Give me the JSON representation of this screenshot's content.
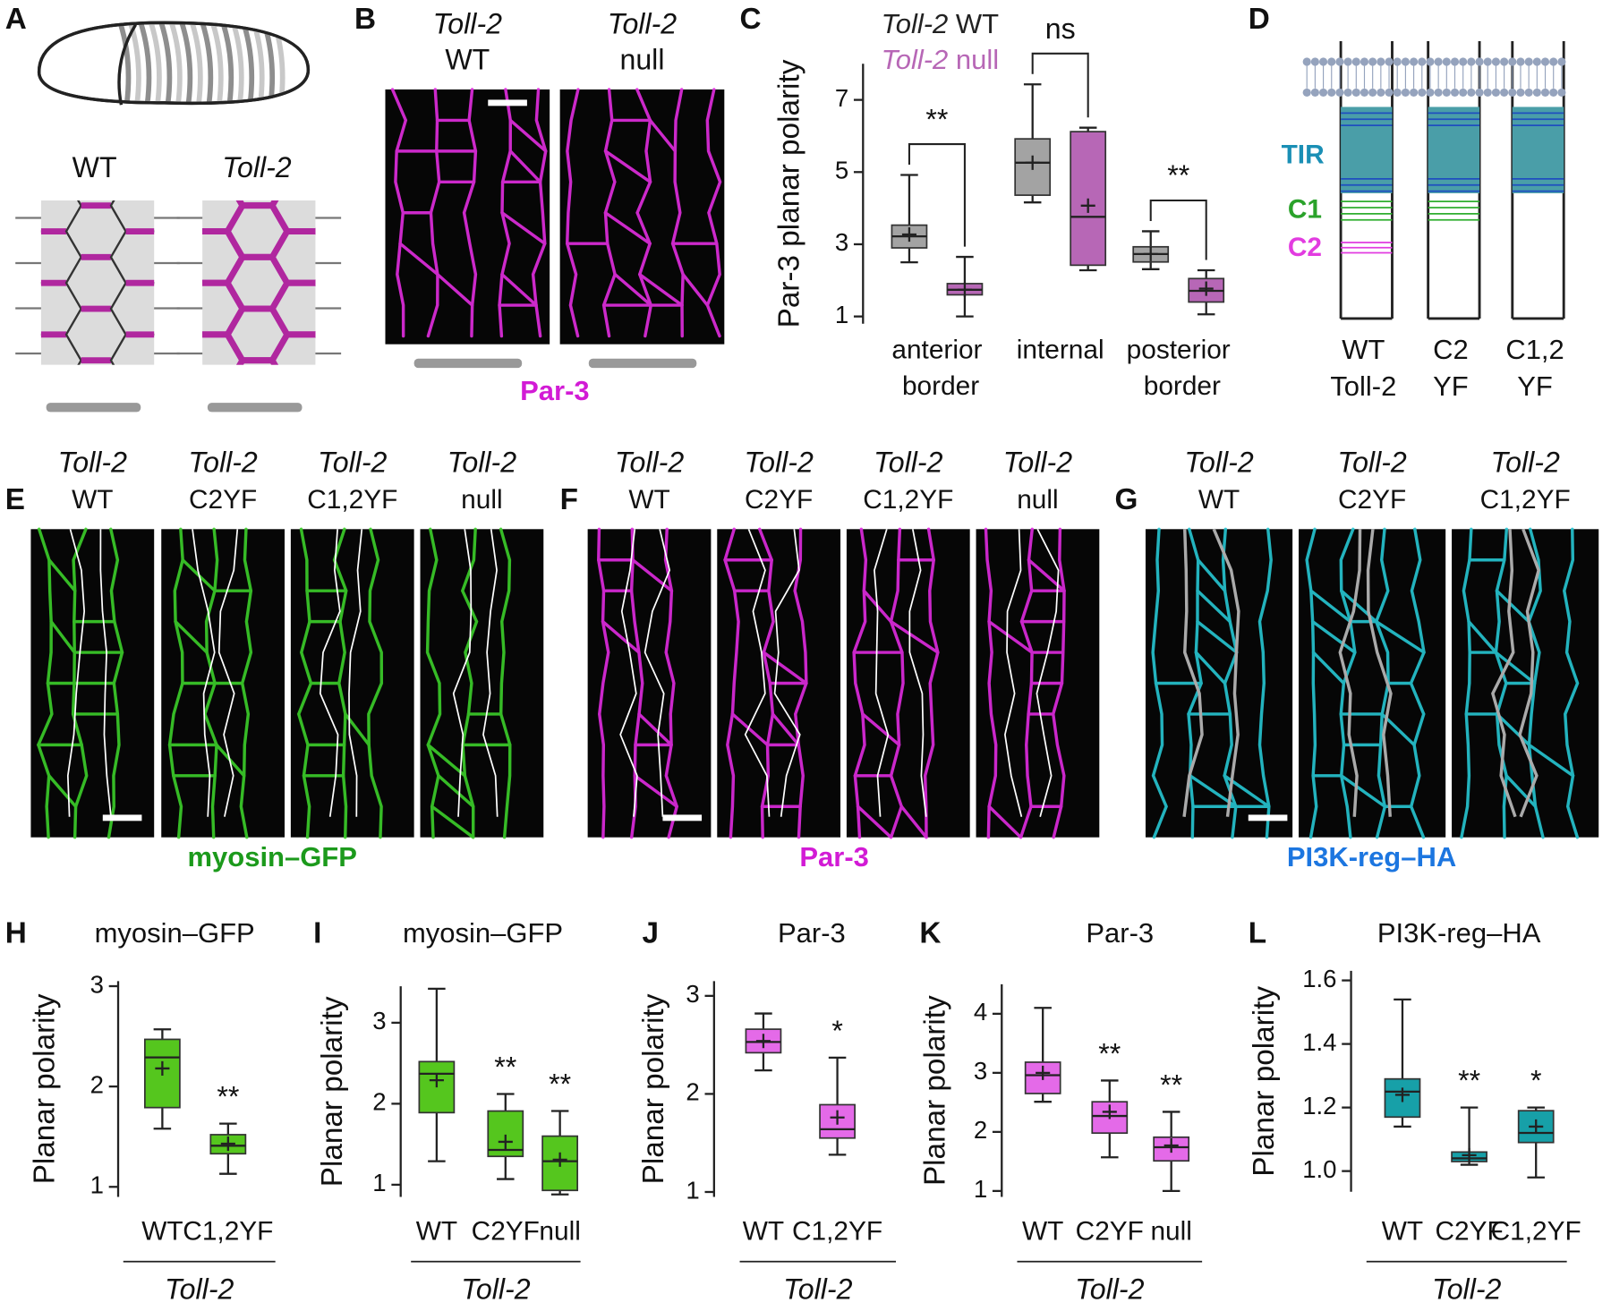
{
  "panels": {
    "A": {
      "label": "A",
      "genotypes": [
        "WT",
        "Toll-2"
      ]
    },
    "B": {
      "label": "B",
      "columns": [
        [
          "Toll-2",
          "WT"
        ],
        [
          "Toll-2",
          "null"
        ]
      ],
      "stain": "Par-3"
    },
    "D": {
      "label": "D",
      "domains": [
        "TIR",
        "C1",
        "C2"
      ],
      "constructs": [
        [
          "WT",
          "Toll-2"
        ],
        [
          "C2",
          "YF"
        ],
        [
          "C1,2",
          "YF"
        ]
      ]
    },
    "E": {
      "label": "E",
      "columns": [
        [
          "Toll-2",
          "WT"
        ],
        [
          "Toll-2",
          "C2YF"
        ],
        [
          "Toll-2",
          "C1,2YF"
        ],
        [
          "Toll-2",
          "null"
        ]
      ],
      "stain": "myosin–GFP"
    },
    "F": {
      "label": "F",
      "columns": [
        [
          "Toll-2",
          "WT"
        ],
        [
          "Toll-2",
          "C2YF"
        ],
        [
          "Toll-2",
          "C1,2YF"
        ],
        [
          "Toll-2",
          "null"
        ]
      ],
      "stain": "Par-3"
    },
    "G": {
      "label": "G",
      "columns": [
        [
          "Toll-2",
          "WT"
        ],
        [
          "Toll-2",
          "C2YF"
        ],
        [
          "Toll-2",
          "C1,2YF"
        ]
      ],
      "stain": "PI3K-reg–HA"
    }
  },
  "chart_data": [
    {
      "panel": "C",
      "type": "box",
      "ylabel": "Par-3 planar polarity",
      "categories": [
        "anterior border",
        "internal",
        "posterior border"
      ],
      "series": [
        {
          "name": "Toll-2 WT",
          "color": "#a3a3a3",
          "boxes": [
            {
              "low": 2.5,
              "q1": 2.9,
              "median": 3.22,
              "q3": 3.53,
              "high": 4.92,
              "mean": 3.27
            },
            {
              "low": 4.16,
              "q1": 4.36,
              "median": 5.26,
              "q3": 5.92,
              "high": 7.43,
              "mean": 5.26
            },
            {
              "low": 2.31,
              "q1": 2.51,
              "median": 2.73,
              "q3": 2.93,
              "high": 3.36,
              "mean": 2.73
            }
          ]
        },
        {
          "name": "Toll-2 null",
          "color": "#b767b6",
          "boxes": [
            {
              "low": 1.0,
              "q1": 1.6,
              "median": 1.74,
              "q3": 1.91,
              "high": 2.65,
              "mean": 1.74
            },
            {
              "low": 2.28,
              "q1": 2.42,
              "median": 3.76,
              "q3": 6.12,
              "high": 6.23,
              "mean": 4.07
            },
            {
              "low": 1.06,
              "q1": 1.4,
              "median": 1.71,
              "q3": 2.05,
              "high": 2.28,
              "mean": 1.77
            }
          ]
        }
      ],
      "annotations": [
        "**",
        "ns",
        "**"
      ],
      "ylim": [
        0.8,
        8
      ],
      "yticks": [
        1,
        3,
        5,
        7
      ]
    },
    {
      "panel": "H",
      "type": "box",
      "title": "myosin–GFP",
      "ylabel": "Planar polarity",
      "categories": [
        "WT",
        "C1,2YF"
      ],
      "group_label": "Toll-2",
      "color": "#55c61e",
      "boxes": [
        {
          "low": 1.58,
          "q1": 1.79,
          "median": 2.29,
          "q3": 2.47,
          "high": 2.57,
          "mean": 2.18
        },
        {
          "low": 1.13,
          "q1": 1.33,
          "median": 1.41,
          "q3": 1.52,
          "high": 1.63,
          "mean": 1.43
        }
      ],
      "annotations": [
        null,
        "**"
      ],
      "ylim": [
        0.9,
        3.05
      ],
      "yticks": [
        1,
        2,
        3
      ]
    },
    {
      "panel": "I",
      "type": "box",
      "title": "myosin–GFP",
      "ylabel": "Planar polarity",
      "categories": [
        "WT",
        "C2YF",
        "null"
      ],
      "group_label": "Toll-2",
      "color": "#55c61e",
      "boxes": [
        {
          "low": 1.29,
          "q1": 1.89,
          "median": 2.37,
          "q3": 2.52,
          "high": 3.42,
          "mean": 2.29
        },
        {
          "low": 1.07,
          "q1": 1.35,
          "median": 1.43,
          "q3": 1.91,
          "high": 2.12,
          "mean": 1.53
        },
        {
          "low": 0.88,
          "q1": 0.93,
          "median": 1.29,
          "q3": 1.6,
          "high": 1.91,
          "mean": 1.31
        }
      ],
      "annotations": [
        null,
        "**",
        "**"
      ],
      "ylim": [
        0.85,
        3.45
      ],
      "yticks": [
        1,
        2,
        3
      ]
    },
    {
      "panel": "J",
      "type": "box",
      "title": "Par-3",
      "ylabel": "Planar polarity",
      "categories": [
        "WT",
        "C1,2YF"
      ],
      "group_label": "Toll-2",
      "color": "#e46ae8",
      "boxes": [
        {
          "low": 2.24,
          "q1": 2.42,
          "median": 2.53,
          "q3": 2.66,
          "high": 2.82,
          "mean": 2.54
        },
        {
          "low": 1.38,
          "q1": 1.55,
          "median": 1.64,
          "q3": 1.89,
          "high": 2.37,
          "mean": 1.76
        }
      ],
      "annotations": [
        null,
        "*"
      ],
      "ylim": [
        0.95,
        3.15
      ],
      "yticks": [
        1,
        2,
        3
      ]
    },
    {
      "panel": "K",
      "type": "box",
      "title": "Par-3",
      "ylabel": "Planar polarity",
      "categories": [
        "WT",
        "C2YF",
        "null"
      ],
      "group_label": "Toll-2",
      "color": "#e46ae8",
      "boxes": [
        {
          "low": 2.51,
          "q1": 2.65,
          "median": 2.96,
          "q3": 3.18,
          "high": 4.1,
          "mean": 3.0
        },
        {
          "low": 1.57,
          "q1": 1.98,
          "median": 2.27,
          "q3": 2.51,
          "high": 2.87,
          "mean": 2.34
        },
        {
          "low": 1.0,
          "q1": 1.51,
          "median": 1.74,
          "q3": 1.91,
          "high": 2.34,
          "mean": 1.77
        }
      ],
      "annotations": [
        null,
        "**",
        "**"
      ],
      "ylim": [
        0.9,
        4.5
      ],
      "yticks": [
        1,
        2,
        3,
        4
      ]
    },
    {
      "panel": "L",
      "type": "box",
      "title": "PI3K-reg–HA",
      "ylabel": "Planar polarity",
      "categories": [
        "WT",
        "C2YF",
        "C1,2YF"
      ],
      "group_label": "Toll-2",
      "color": "#17a0a8",
      "boxes": [
        {
          "low": 1.14,
          "q1": 1.17,
          "median": 1.25,
          "q3": 1.29,
          "high": 1.54,
          "mean": 1.24
        },
        {
          "low": 1.02,
          "q1": 1.03,
          "median": 1.04,
          "q3": 1.06,
          "high": 1.2,
          "mean": 1.05
        },
        {
          "low": 0.98,
          "q1": 1.09,
          "median": 1.12,
          "q3": 1.19,
          "high": 1.2,
          "mean": 1.14
        }
      ],
      "annotations": [
        null,
        "**",
        "*"
      ],
      "ylim": [
        0.935,
        1.63
      ],
      "yticks": [
        {
          "value": 1,
          "label": "1.0"
        },
        1.2,
        1.4,
        1.6
      ]
    }
  ]
}
